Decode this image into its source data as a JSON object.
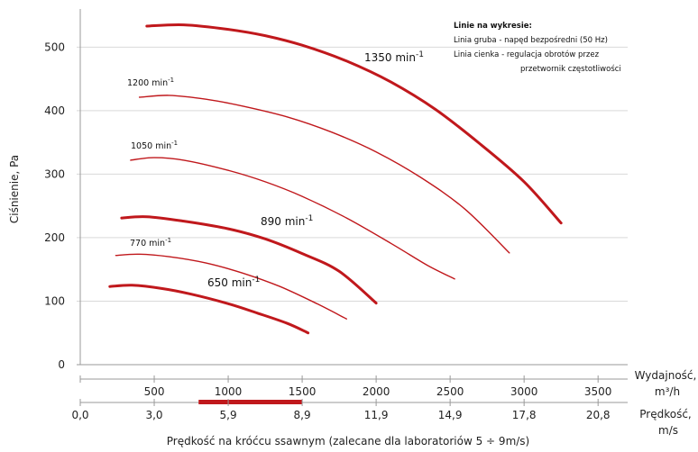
{
  "chart_data": {
    "type": "line",
    "ylabel": "Ciśnienie, Pa",
    "y_ticks": [
      "0",
      "100",
      "200",
      "300",
      "400",
      "500"
    ],
    "ylim": [
      0,
      560
    ],
    "xlim": [
      0,
      3700
    ],
    "x_axis_primary": {
      "label_line1": "Wydajność,",
      "label_line2": "m³/h",
      "ticks": [
        500,
        1000,
        1500,
        2000,
        2500,
        3000,
        3500
      ],
      "tick_labels": [
        "500",
        "1000",
        "1500",
        "2000",
        "2500",
        "3000",
        "3500"
      ]
    },
    "x_axis_secondary": {
      "label_line1": "Prędkość,",
      "label_line2": "m/s",
      "ticks": [
        0,
        500,
        1000,
        1500,
        2000,
        2500,
        3000,
        3500
      ],
      "tick_labels": [
        "0,0",
        "3,0",
        "5,9",
        "8,9",
        "11,9",
        "14,9",
        "17,8",
        "20,8"
      ],
      "recommended_range": [
        800,
        1500
      ],
      "recommended_color": "#c0181c"
    },
    "bottom_caption": "Prędkość na króćcu ssawnym (zalecane dla laboratoriów 5 ÷ 9m/s)",
    "legend_note": {
      "title": "Linie na wykresie:",
      "line1": "Linia gruba - napęd bezpośredni (50 Hz)",
      "line2": "Linia cienka - regulacja obrotów przez",
      "line3": "przetwornik częstotliwości"
    },
    "curve_color": "#c0181c",
    "series": [
      {
        "label": "1350 min",
        "sup": "-1",
        "thick": true,
        "small": false,
        "x": [
          450,
          700,
          1000,
          1250,
          1500,
          1800,
          2100,
          2400,
          2700,
          3000,
          3250
        ],
        "y": [
          533,
          535,
          528,
          518,
          503,
          478,
          445,
          402,
          348,
          288,
          223
        ]
      },
      {
        "label": "1200 min",
        "sup": "-1",
        "thick": false,
        "small": true,
        "x": [
          400,
          600,
          850,
          1100,
          1400,
          1700,
          2000,
          2300,
          2600,
          2900
        ],
        "y": [
          421,
          424,
          418,
          407,
          390,
          366,
          335,
          295,
          245,
          176
        ]
      },
      {
        "label": "1050 min",
        "sup": "-1",
        "thick": false,
        "small": true,
        "x": [
          340,
          500,
          700,
          1000,
          1250,
          1500,
          1800,
          2100,
          2350,
          2530
        ],
        "y": [
          322,
          326,
          322,
          306,
          288,
          265,
          231,
          191,
          156,
          135
        ]
      },
      {
        "label": "890 min",
        "sup": "-1",
        "thick": true,
        "small": false,
        "x": [
          280,
          450,
          700,
          1000,
          1250,
          1500,
          1750,
          2000
        ],
        "y": [
          231,
          233,
          226,
          214,
          198,
          175,
          147,
          97
        ]
      },
      {
        "label": "770 min",
        "sup": "-1",
        "thick": false,
        "small": true,
        "x": [
          240,
          400,
          600,
          850,
          1100,
          1350,
          1600,
          1800
        ],
        "y": [
          172,
          174,
          170,
          160,
          144,
          123,
          96,
          72
        ]
      },
      {
        "label": "650 min",
        "sup": "-1",
        "thick": true,
        "small": false,
        "x": [
          200,
          350,
          550,
          750,
          1000,
          1200,
          1400,
          1540
        ],
        "y": [
          123,
          125,
          120,
          111,
          96,
          81,
          65,
          50
        ]
      }
    ]
  }
}
